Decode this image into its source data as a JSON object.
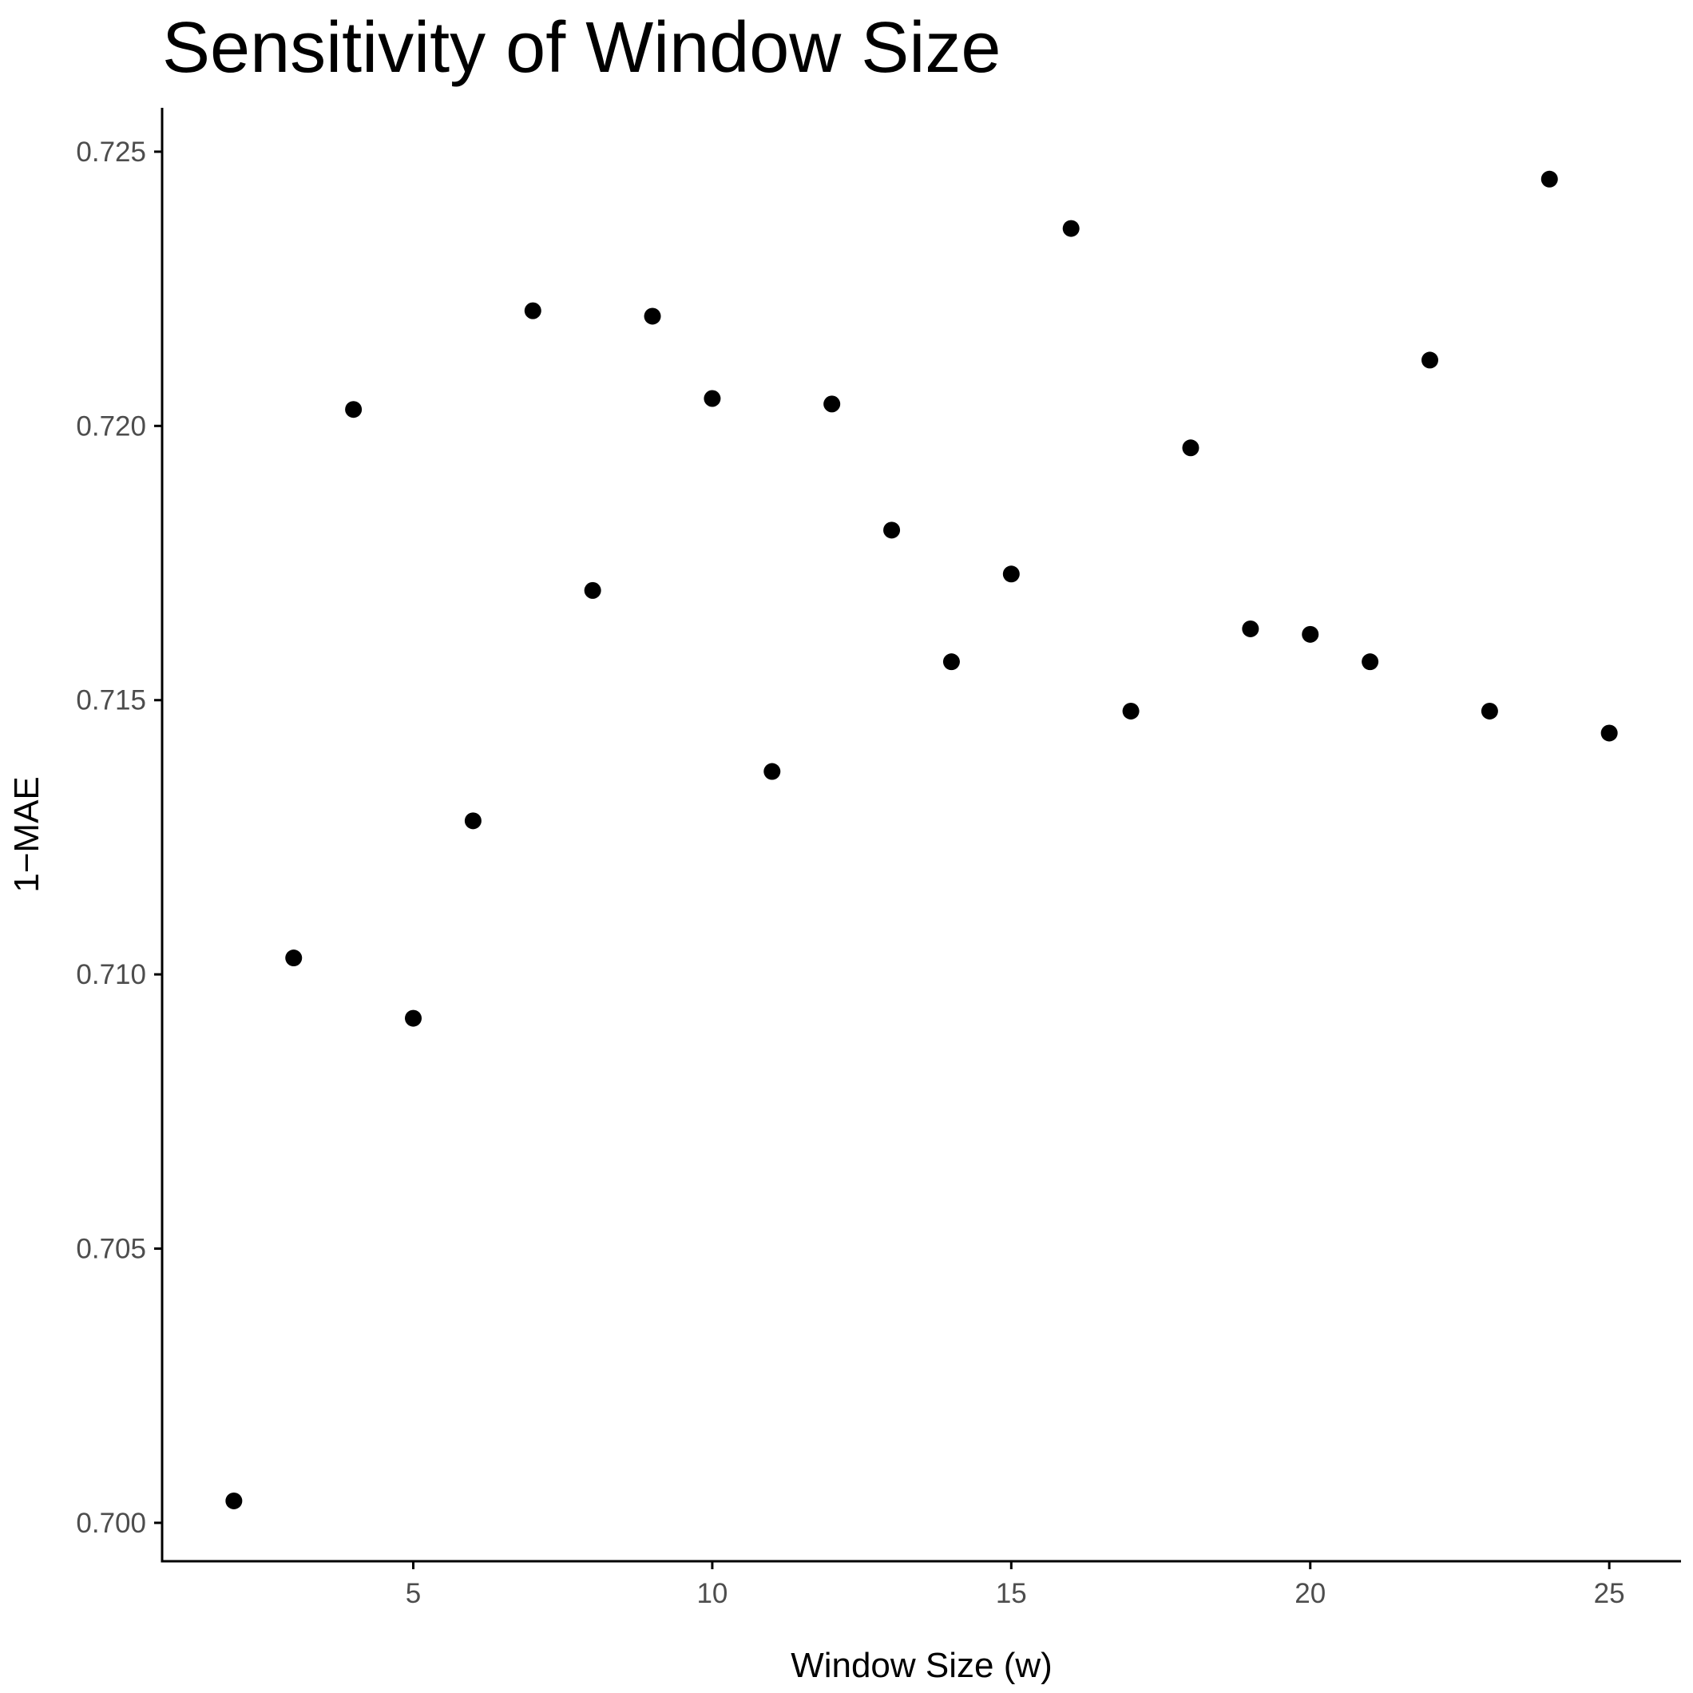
{
  "chart_data": {
    "type": "scatter",
    "title": "Sensitivity of Window Size",
    "xlabel": "Window Size (w)",
    "ylabel": "1−MAE",
    "xlim": [
      0.8,
      26.2
    ],
    "ylim": [
      0.6993,
      0.7258
    ],
    "xticks": [
      5,
      10,
      15,
      20,
      25
    ],
    "xtick_labels": [
      "5",
      "10",
      "15",
      "20",
      "25"
    ],
    "yticks": [
      0.7,
      0.705,
      0.71,
      0.715,
      0.72,
      0.725
    ],
    "ytick_labels": [
      "0.700",
      "0.705",
      "0.710",
      "0.715",
      "0.720",
      "0.725"
    ],
    "grid": false,
    "legend": "none",
    "point_color": "#000000",
    "x": [
      2,
      3,
      4,
      5,
      6,
      7,
      8,
      9,
      10,
      11,
      12,
      13,
      14,
      15,
      16,
      17,
      18,
      19,
      20,
      21,
      22,
      23,
      24,
      25
    ],
    "y": [
      0.7004,
      0.7103,
      0.7203,
      0.7092,
      0.7128,
      0.7221,
      0.717,
      0.722,
      0.7205,
      0.7137,
      0.7204,
      0.7181,
      0.7157,
      0.7173,
      0.7236,
      0.7148,
      0.7196,
      0.7163,
      0.7162,
      0.7157,
      0.7212,
      0.7148,
      0.7245,
      0.7144
    ]
  }
}
